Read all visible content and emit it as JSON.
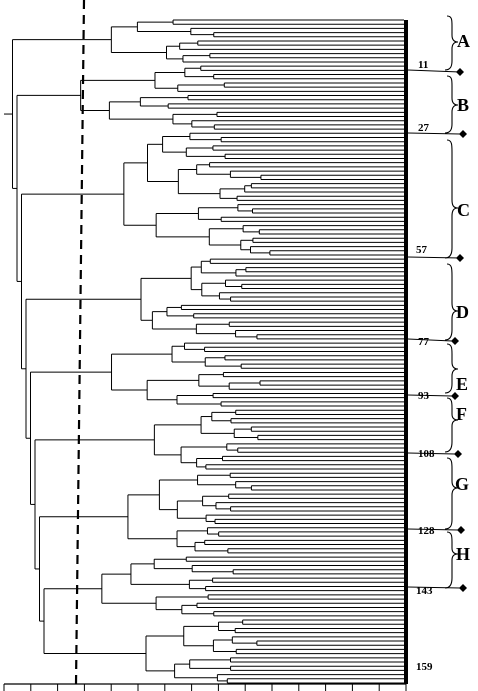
{
  "clusters": [
    {
      "letter": "A",
      "boundary_label": "11"
    },
    {
      "letter": "B",
      "boundary_label": "27"
    },
    {
      "letter": "C",
      "boundary_label": "57"
    },
    {
      "letter": "D",
      "boundary_label": "77"
    },
    {
      "letter": "E",
      "boundary_label": "93"
    },
    {
      "letter": "F",
      "boundary_label": "108"
    },
    {
      "letter": "G",
      "boundary_label": "128"
    },
    {
      "letter": "H",
      "boundary_label": "143"
    }
  ],
  "last_leaf_label": "159",
  "leaf_count": 159
}
